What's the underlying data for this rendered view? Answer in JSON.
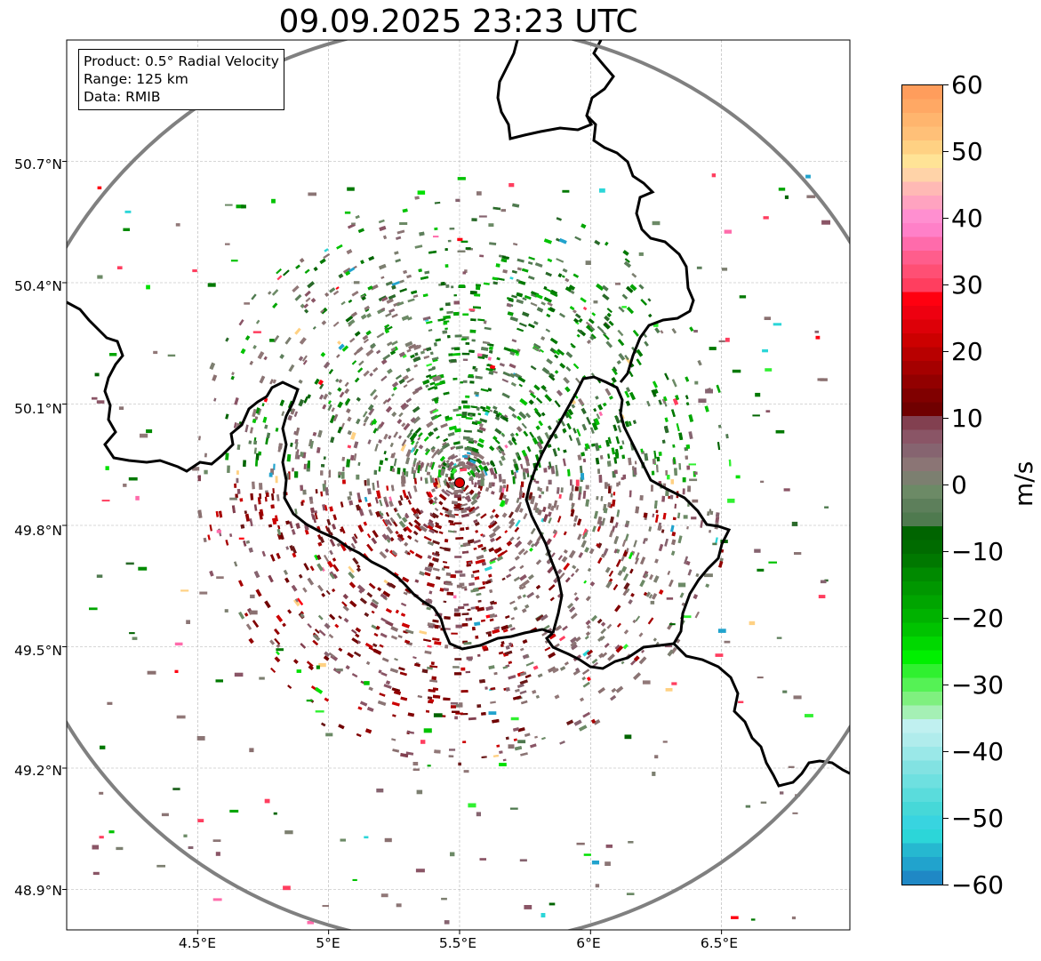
{
  "title": "09.09.2025 23:23 UTC",
  "info_box": {
    "product": "Product: 0.5° Radial Velocity",
    "range": "Range: 125 km",
    "data_source": "Data: RMIB"
  },
  "map": {
    "lon_ticks": [
      "4.5°E",
      "5°E",
      "5.5°E",
      "6°E",
      "6.5°E"
    ],
    "lat_ticks": [
      "50.7°N",
      "50.4°N",
      "50.1°N",
      "49.8°N",
      "49.5°N",
      "49.2°N",
      "48.9°N"
    ],
    "extent": {
      "lon_min": 4.0,
      "lon_max": 6.99,
      "lat_min": 48.8,
      "lat_max": 51.0
    },
    "radar_site": {
      "lon": 5.505,
      "lat": 49.914
    },
    "range_ring_color": "#808080",
    "radar_marker_color": "#e00000",
    "gridlines": true,
    "precip_regions": [
      {
        "name": "northeast inbound band",
        "lon": 5.95,
        "lat": 50.25,
        "dominant": "-10 to -20 m/s (green)"
      },
      {
        "name": "southwest outbound band",
        "lon": 5.2,
        "lat": 49.65,
        "dominant": "+10 to +15 m/s (dark red)"
      },
      {
        "name": "southeast near-zero",
        "lon": 6.1,
        "lat": 49.75,
        "dominant": "0 to +5 m/s (gray-mauve)"
      }
    ]
  },
  "colorbar": {
    "label": "m/s",
    "vmin": -60,
    "vmax": 60,
    "ticks": [
      "60",
      "50",
      "40",
      "30",
      "20",
      "10",
      "0",
      "−10",
      "−20",
      "−30",
      "−40",
      "−50",
      "−60"
    ],
    "colors_top_to_bottom": [
      "#ff9d5c",
      "#ffa864",
      "#ffb56e",
      "#ffc078",
      "#ffd183",
      "#ffe396",
      "#ffd3a8",
      "#ffb9b5",
      "#ffa3c0",
      "#ff8fd0",
      "#ff80c8",
      "#ff6bab",
      "#ff5d8c",
      "#ff4f74",
      "#ff3e5f",
      "#ff0010",
      "#ee0010",
      "#dd0008",
      "#cc0000",
      "#b80000",
      "#a50000",
      "#920000",
      "#800000",
      "#700000",
      "#824050",
      "#8a5566",
      "#866470",
      "#8b7575",
      "#7c7f70",
      "#6c8a66",
      "#5d7f5b",
      "#4f7a4f",
      "#006400",
      "#006b00",
      "#007800",
      "#008a00",
      "#009700",
      "#00a500",
      "#00b200",
      "#00c300",
      "#00d800",
      "#00f000",
      "#30f030",
      "#55f255",
      "#7ff07f",
      "#a5f0b5",
      "#c0f0f0",
      "#b0ecec",
      "#9ae8e8",
      "#82e2e2",
      "#6ee0e0",
      "#5adcdc",
      "#46d8d8",
      "#38d4e0",
      "#2cd6d8",
      "#26b8d0",
      "#21a3cd",
      "#1f88c5"
    ]
  }
}
